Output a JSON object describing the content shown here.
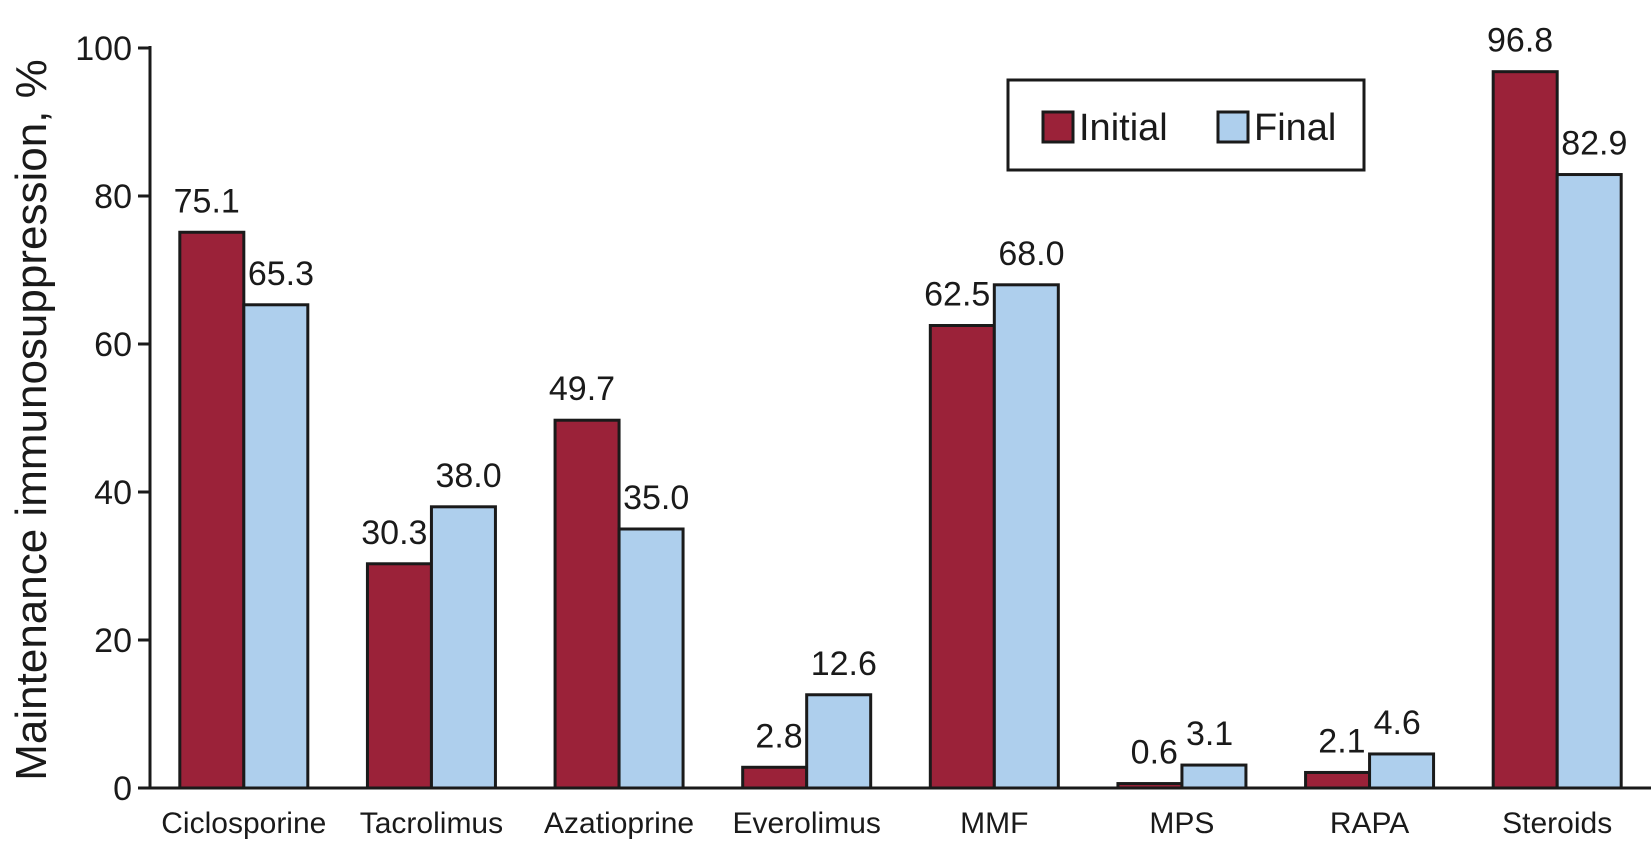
{
  "chart_data": {
    "type": "bar",
    "title": "",
    "xlabel": "",
    "ylabel": "Maintenance immunosuppression, %",
    "ylim": [
      0,
      100
    ],
    "yticks": [
      0,
      20,
      40,
      60,
      80,
      100
    ],
    "grid": false,
    "legend_position": "top-right",
    "categories": [
      "Ciclosporine",
      "Tacrolimus",
      "Azatioprine",
      "Everolimus",
      "MMF",
      "MPS",
      "RAPA",
      "Steroids"
    ],
    "series": [
      {
        "name": "Initial",
        "color": "#9b2239",
        "values": [
          75.1,
          30.3,
          49.7,
          2.8,
          62.5,
          0.6,
          2.1,
          96.8
        ],
        "labels": [
          "75.1",
          "30.3",
          "49.7",
          "2.8",
          "62.5",
          "0.6",
          "2.1",
          "96.8"
        ]
      },
      {
        "name": "Final",
        "color": "#aecfed",
        "values": [
          65.3,
          38.0,
          35.0,
          12.6,
          68.0,
          3.1,
          4.6,
          82.9
        ],
        "labels": [
          "65.3",
          "38.0",
          "35.0",
          "12.6",
          "68.0",
          "3.1",
          "4.6",
          "82.9"
        ]
      }
    ]
  }
}
